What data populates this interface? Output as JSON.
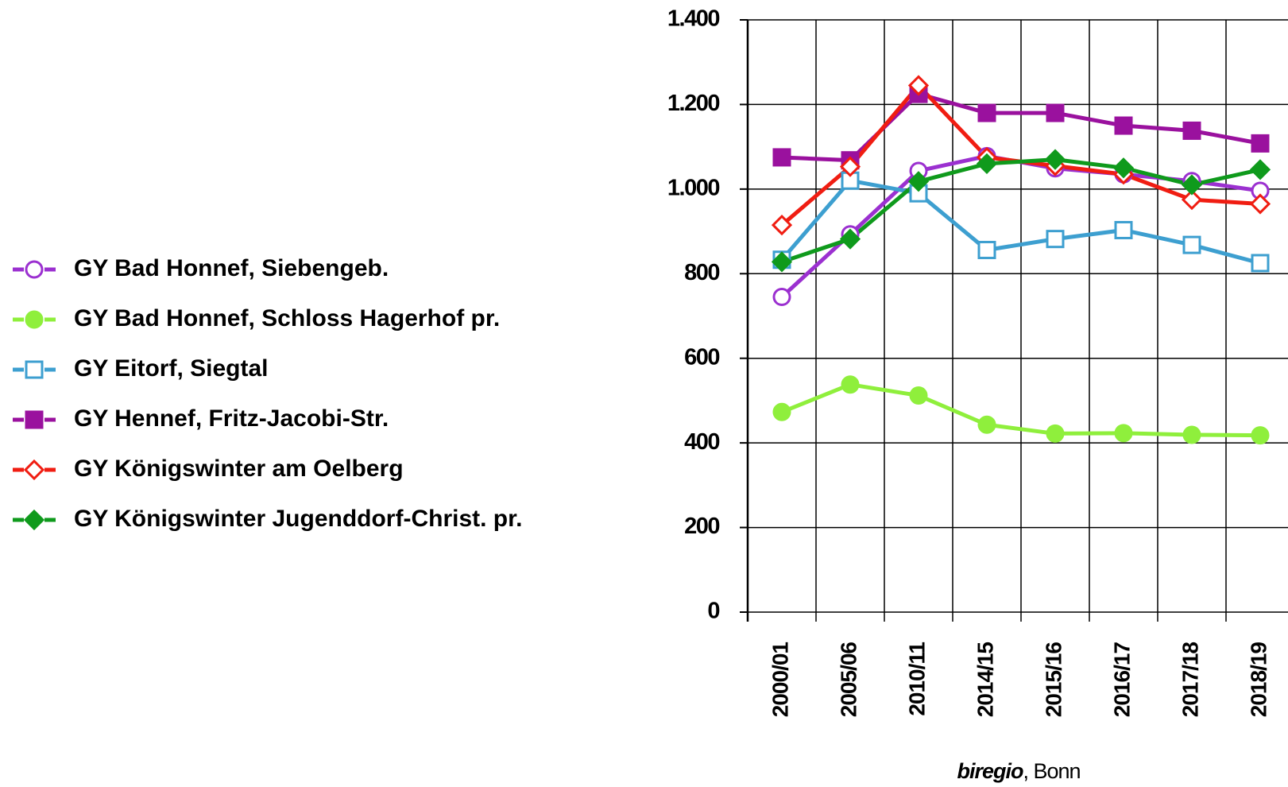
{
  "chart_data": {
    "type": "line",
    "categories": [
      "2000/01",
      "2005/06",
      "2010/11",
      "2014/15",
      "2015/16",
      "2016/17",
      "2017/18",
      "2018/19"
    ],
    "series": [
      {
        "name": "GY Bad Honnef, Siebengeb.",
        "color": "#9b30d0",
        "marker": "circle",
        "filled": false,
        "values": [
          745,
          893,
          1043,
          1078,
          1049,
          1035,
          1019,
          996
        ]
      },
      {
        "name": "GY Bad Honnef, Schloss Hagerhof pr.",
        "color": "#8fef3c",
        "marker": "circle",
        "filled": true,
        "values": [
          473,
          538,
          512,
          443,
          422,
          423,
          419,
          418
        ]
      },
      {
        "name": "GY Eitorf, Siegtal",
        "color": "#3d9fd0",
        "marker": "square",
        "filled": false,
        "values": [
          833,
          1020,
          990,
          856,
          882,
          903,
          868,
          825
        ]
      },
      {
        "name": "GY Hennef, Fritz-Jacobi-Str.",
        "color": "#9a119e",
        "marker": "square",
        "filled": true,
        "values": [
          1075,
          1068,
          1225,
          1180,
          1180,
          1150,
          1138,
          1108
        ]
      },
      {
        "name": "GY Königswinter am Oelberg",
        "color": "#f01d12",
        "marker": "diamond",
        "filled": false,
        "values": [
          915,
          1053,
          1245,
          1075,
          1055,
          1035,
          975,
          965
        ]
      },
      {
        "name": "GY Königswinter Jugenddorf-Christ. pr.",
        "color": "#0f9a1c",
        "marker": "diamond",
        "filled": true,
        "values": [
          828,
          882,
          1018,
          1060,
          1070,
          1050,
          1010,
          1046
        ]
      }
    ],
    "ylim": [
      0,
      1400
    ],
    "yticks": [
      0,
      200,
      400,
      600,
      800,
      {
        "value": 1000,
        "label": "1.000"
      },
      {
        "value": 1200,
        "label": "1.200"
      },
      {
        "value": 1400,
        "label": "1.400"
      }
    ],
    "grid": true,
    "legend": "left",
    "source_italic": "biregio",
    "source": ", Bonn"
  }
}
